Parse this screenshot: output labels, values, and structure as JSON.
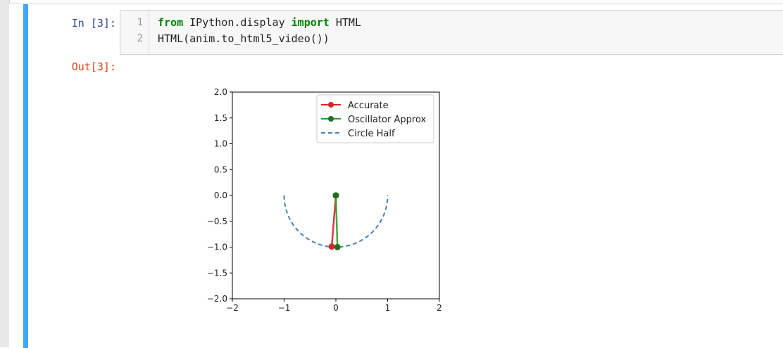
{
  "notebook": {
    "input_prompt": "In  [3]:",
    "output_prompt": "Out[3]:",
    "line_numbers": [
      "1",
      "2"
    ],
    "code": {
      "line1_kw1": "from",
      "line1_mid": " IPython.display ",
      "line1_kw2": "import",
      "line1_end": " HTML",
      "line2": "HTML(anim.to_html5_video())"
    }
  },
  "colors": {
    "accurate": "#d62728",
    "oscillator": "#2ca02c",
    "circle": "#4682b4",
    "cell_bar": "#42a5f5"
  },
  "chart_data": {
    "type": "line",
    "xlim": [
      -2,
      2
    ],
    "ylim": [
      -2,
      2
    ],
    "x_ticks": [
      "−2",
      "−1",
      "0",
      "1",
      "2"
    ],
    "y_ticks": [
      "2.0",
      "1.5",
      "1.0",
      "0.5",
      "0.0",
      "−0.5",
      "−1.0",
      "−1.5",
      "−2.0"
    ],
    "legend_position": "top-right",
    "grid": false,
    "series": [
      {
        "name": "Accurate",
        "style": "solid-marker",
        "x": [
          0,
          -0.08
        ],
        "y": [
          0,
          -0.99
        ]
      },
      {
        "name": "Oscillator Approx",
        "style": "solid-marker",
        "x": [
          0,
          0.03
        ],
        "y": [
          0,
          -1.0
        ]
      },
      {
        "name": "Circle Half",
        "style": "dashed",
        "x_range": [
          -1,
          1
        ],
        "radius": 1
      }
    ]
  }
}
